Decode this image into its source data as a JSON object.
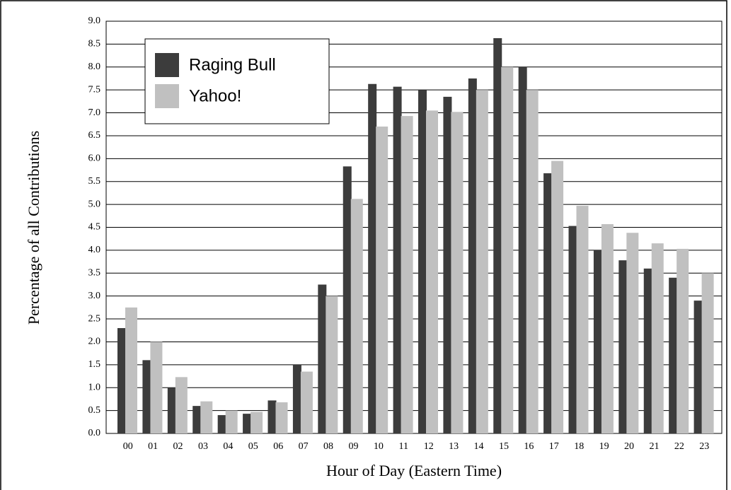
{
  "chart_data": {
    "type": "bar",
    "ylabel": "Percentage of all Contributions",
    "xlabel": "Hour of Day (Eastern Time)",
    "categories": [
      "00",
      "01",
      "02",
      "03",
      "04",
      "05",
      "06",
      "07",
      "08",
      "09",
      "10",
      "11",
      "12",
      "13",
      "14",
      "15",
      "16",
      "17",
      "18",
      "19",
      "20",
      "21",
      "22",
      "23"
    ],
    "series": [
      {
        "name": "Raging Bull",
        "color": "#3c3c3c",
        "values": [
          2.3,
          1.6,
          1.0,
          0.6,
          0.4,
          0.43,
          0.72,
          1.5,
          3.25,
          5.83,
          7.63,
          7.57,
          7.5,
          7.35,
          7.75,
          8.63,
          8.0,
          5.68,
          4.53,
          4.0,
          3.78,
          3.6,
          3.4,
          2.9
        ]
      },
      {
        "name": "Yahoo!",
        "color": "#c0c0c0",
        "values": [
          2.75,
          2.0,
          1.23,
          0.7,
          0.5,
          0.47,
          0.68,
          1.35,
          3.0,
          5.12,
          6.7,
          6.93,
          7.05,
          7.02,
          7.5,
          8.0,
          7.5,
          5.95,
          4.97,
          4.57,
          4.38,
          4.15,
          4.03,
          3.5
        ]
      }
    ],
    "ylim": [
      0,
      9
    ],
    "yticks": [
      {
        "value": 0,
        "label": "0.0"
      },
      {
        "value": 0.5,
        "label": "0.5"
      },
      {
        "value": 1,
        "label": "1.0"
      },
      {
        "value": 1.5,
        "label": "1.5"
      },
      {
        "value": 2,
        "label": "2.0"
      },
      {
        "value": 2.5,
        "label": "2.5"
      },
      {
        "value": 3,
        "label": "3.0"
      },
      {
        "value": 3.5,
        "label": "3.5"
      },
      {
        "value": 4,
        "label": "4.0"
      },
      {
        "value": 4.5,
        "label": "4.5"
      },
      {
        "value": 5,
        "label": "5.0"
      },
      {
        "value": 5.5,
        "label": "5.5"
      },
      {
        "value": 6,
        "label": "6.0"
      },
      {
        "value": 6.5,
        "label": "6.5"
      },
      {
        "value": 7,
        "label": "7.0"
      },
      {
        "value": 7.5,
        "label": "7.5"
      },
      {
        "value": 8,
        "label": "8.0"
      },
      {
        "value": 8.5,
        "label": "8.5"
      },
      {
        "value": 9,
        "label": "9.0"
      }
    ],
    "grid": true,
    "legend": "upper left"
  }
}
